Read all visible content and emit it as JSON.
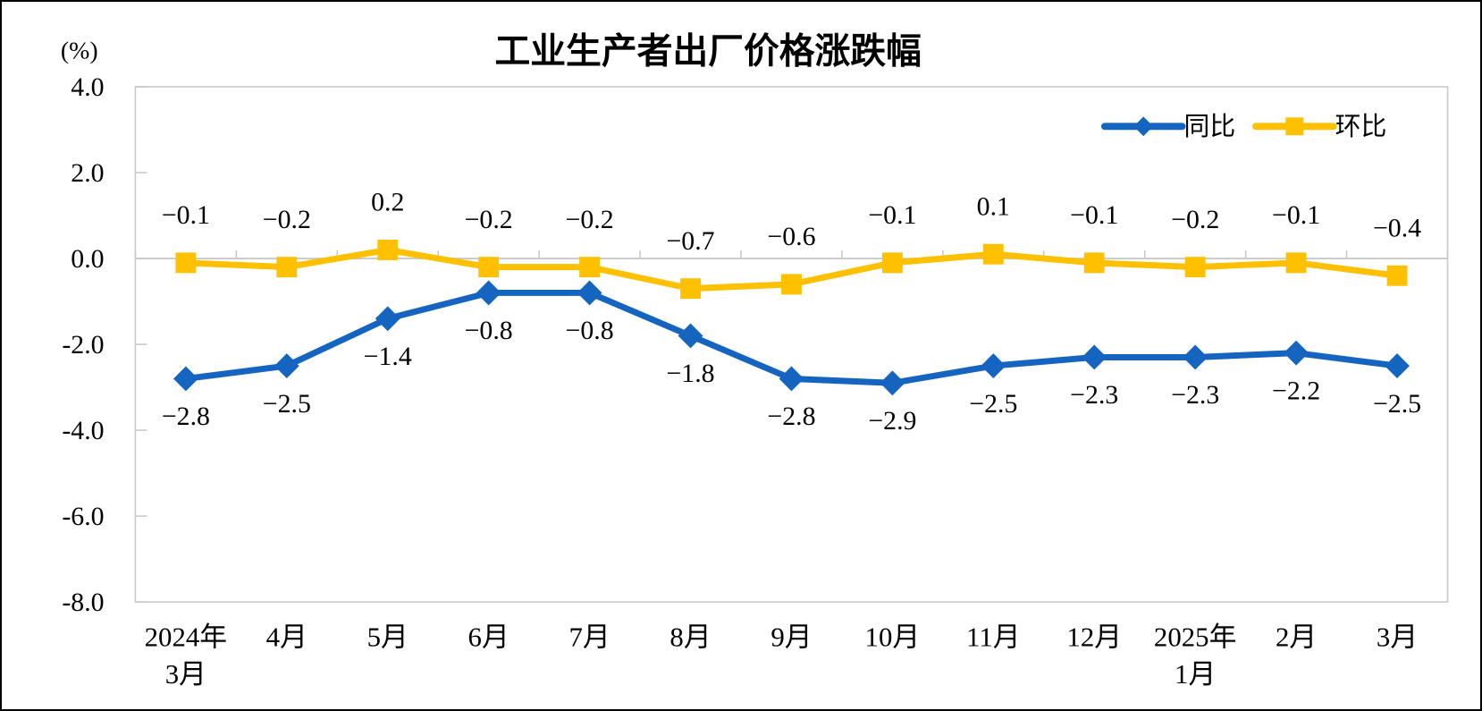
{
  "chart_data": {
    "type": "line",
    "title": "工业生产者出厂价格涨跌幅",
    "ylabel": "(%)",
    "ylim": [
      -8.0,
      4.0
    ],
    "yticks": [
      4.0,
      2.0,
      0.0,
      -2.0,
      -4.0,
      -6.0,
      -8.0
    ],
    "grid": false,
    "legend_position": "top-right",
    "axis_color": "#C9C9C9",
    "categories": [
      {
        "line1": "2024年",
        "line2": "3月"
      },
      {
        "line1": "4月"
      },
      {
        "line1": "5月"
      },
      {
        "line1": "6月"
      },
      {
        "line1": "7月"
      },
      {
        "line1": "8月"
      },
      {
        "line1": "9月"
      },
      {
        "line1": "10月"
      },
      {
        "line1": "11月"
      },
      {
        "line1": "12月"
      },
      {
        "line1": "2025年",
        "line2": "1月"
      },
      {
        "line1": "2月"
      },
      {
        "line1": "3月"
      }
    ],
    "series": [
      {
        "name": "同比",
        "color": "#1565C0",
        "marker": "diamond",
        "label_position": "below",
        "values": [
          -2.8,
          -2.5,
          -1.4,
          -0.8,
          -0.8,
          -1.8,
          -2.8,
          -2.9,
          -2.5,
          -2.3,
          -2.3,
          -2.2,
          -2.5
        ]
      },
      {
        "name": "环比",
        "color": "#FFC000",
        "marker": "square",
        "label_position": "above",
        "values": [
          -0.1,
          -0.2,
          0.2,
          -0.2,
          -0.2,
          -0.7,
          -0.6,
          -0.1,
          0.1,
          -0.1,
          -0.2,
          -0.1,
          -0.4
        ]
      }
    ]
  }
}
